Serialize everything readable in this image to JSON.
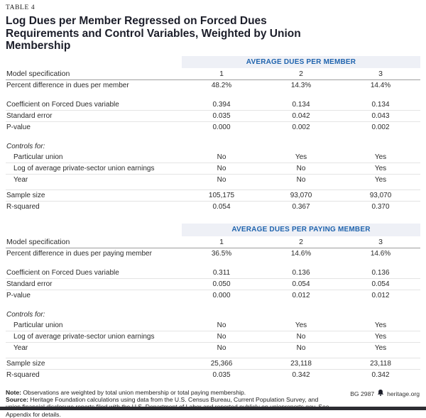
{
  "table_label": "TABLE 4",
  "title": "Log Dues per Member Regressed on Forced Dues Requirements and Control Variables, Weighted by Union Membership",
  "colors": {
    "accent_blue": "#2064ae",
    "band_background": "#eef0f6",
    "title_color": "#1c1e2a"
  },
  "sections": [
    {
      "band_label": "AVERAGE DUES PER MEMBER",
      "spec_label": "Model specification",
      "col_headers": [
        "1",
        "2",
        "3"
      ],
      "rows": [
        {
          "label": "Percent difference in dues per member",
          "values": [
            "48.2%",
            "14.3%",
            "14.4%"
          ]
        },
        {
          "type": "gap"
        },
        {
          "label": "Coefficient on Forced Dues variable",
          "values": [
            "0.394",
            "0.134",
            "0.134"
          ],
          "sep": true
        },
        {
          "label": "Standard error",
          "values": [
            "0.035",
            "0.042",
            "0.043"
          ],
          "sep": true
        },
        {
          "label": "P-value",
          "values": [
            "0.000",
            "0.002",
            "0.002"
          ]
        },
        {
          "type": "gap"
        },
        {
          "label": "Controls for:",
          "values": [
            "",
            "",
            ""
          ],
          "italic": true
        },
        {
          "label": "Particular union",
          "values": [
            "No",
            "Yes",
            "Yes"
          ],
          "indent": true,
          "sep": true
        },
        {
          "label": "Log of average private-sector union earnings",
          "values": [
            "No",
            "No",
            "Yes"
          ],
          "indent": true,
          "sep": true
        },
        {
          "label": "Year",
          "values": [
            "No",
            "No",
            "Yes"
          ],
          "indent": true
        },
        {
          "type": "gap",
          "small": true
        },
        {
          "label": "Sample size",
          "values": [
            "105,175",
            "93,070",
            "93,070"
          ],
          "topline": true,
          "sep": true
        },
        {
          "label": "R-squared",
          "values": [
            "0.054",
            "0.367",
            "0.370"
          ]
        }
      ]
    },
    {
      "band_label": "AVERAGE DUES PER PAYING MEMBER",
      "spec_label": "Model specification",
      "col_headers": [
        "1",
        "2",
        "3"
      ],
      "rows": [
        {
          "label": "Percent difference in dues per paying member",
          "values": [
            "36.5%",
            "14.6%",
            "14.6%"
          ]
        },
        {
          "type": "gap"
        },
        {
          "label": "Coefficient on Forced Dues variable",
          "values": [
            "0.311",
            "0.136",
            "0.136"
          ],
          "sep": true
        },
        {
          "label": "Standard error",
          "values": [
            "0.050",
            "0.054",
            "0.054"
          ],
          "sep": true
        },
        {
          "label": "P-value",
          "values": [
            "0.000",
            "0.012",
            "0.012"
          ]
        },
        {
          "type": "gap"
        },
        {
          "label": "Controls for:",
          "values": [
            "",
            "",
            ""
          ],
          "italic": true
        },
        {
          "label": "Particular union",
          "values": [
            "No",
            "Yes",
            "Yes"
          ],
          "indent": true,
          "sep": true
        },
        {
          "label": "Log of average private-sector union earnings",
          "values": [
            "No",
            "No",
            "Yes"
          ],
          "indent": true,
          "sep": true
        },
        {
          "label": "Year",
          "values": [
            "No",
            "No",
            "Yes"
          ],
          "indent": true
        },
        {
          "type": "gap",
          "small": true
        },
        {
          "label": "Sample size",
          "values": [
            "25,366",
            "23,118",
            "23,118"
          ],
          "topline": true,
          "sep": true
        },
        {
          "label": "R-squared",
          "values": [
            "0.035",
            "0.342",
            "0.342"
          ]
        }
      ]
    }
  ],
  "notes": {
    "note_label": "Note:",
    "note_text": "Observations are weighted by total union membership or total paying membership.",
    "source_label": "Source:",
    "source_text": "Heritage Foundation calculations using data from the U.S. Census Bureau, Current Population Survey, and union financial disclosure reports filed with the U.S. Department of Labor and reported publicly on unionreports.gov. See Appendix for details."
  },
  "footer": {
    "doc_id": "BG 2987",
    "site": "heritage.org"
  }
}
